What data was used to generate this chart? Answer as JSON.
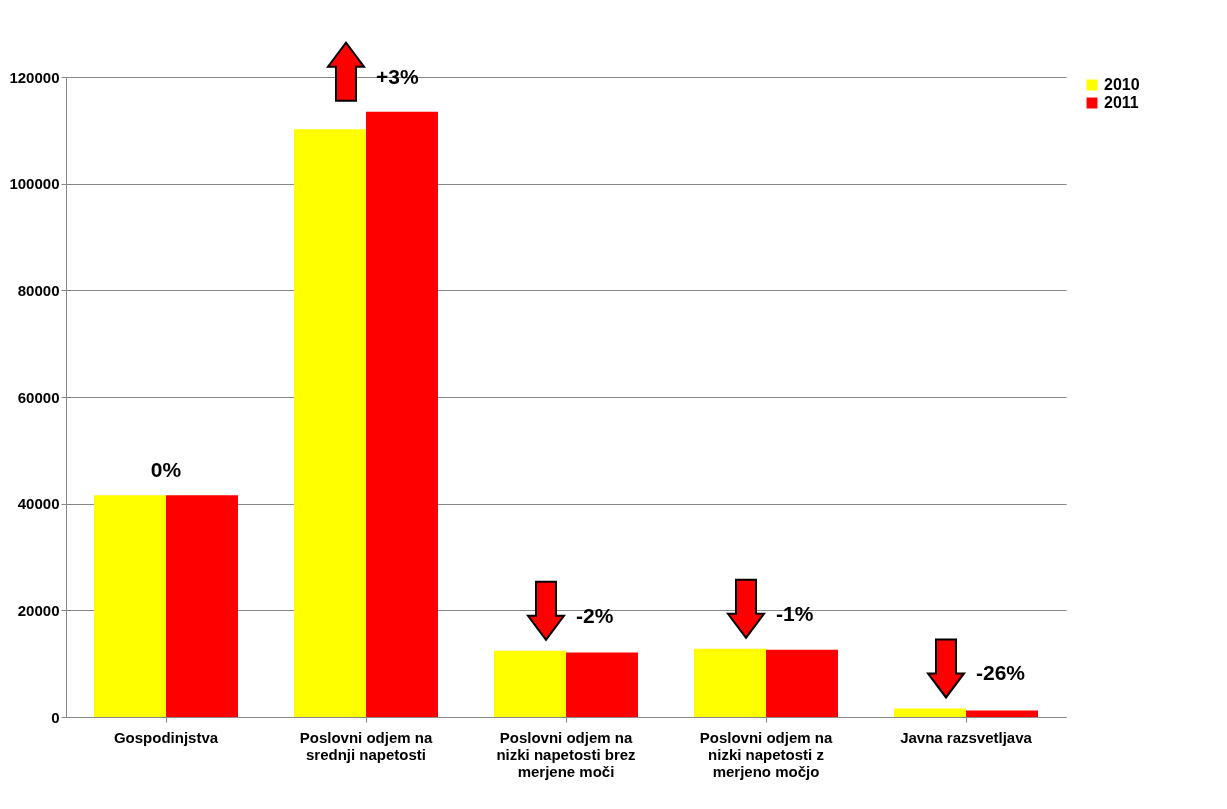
{
  "chart_data": {
    "type": "bar",
    "categories": [
      "Gospodinjstva",
      "Poslovni odjem na srednji napetosti",
      "Poslovni odjem na nizki napetosti brez merjene moči",
      "Poslovni odjem na nizki napetosti z merjeno močjo",
      "Javna razsvetljava"
    ],
    "series": [
      {
        "name": "2010",
        "color": "#ffff00",
        "values": [
          41600,
          110200,
          12400,
          12800,
          1600
        ]
      },
      {
        "name": "2011",
        "color": "#ff0000",
        "values": [
          41600,
          113500,
          12100,
          12600,
          1200
        ]
      }
    ],
    "ylim": [
      0,
      120000
    ],
    "yticks": [
      0,
      20000,
      40000,
      60000,
      80000,
      100000,
      120000
    ],
    "grid": "y",
    "legend": "right",
    "annotations": [
      "0%",
      "+3%",
      "-2%",
      "-1%",
      "-26%"
    ]
  }
}
